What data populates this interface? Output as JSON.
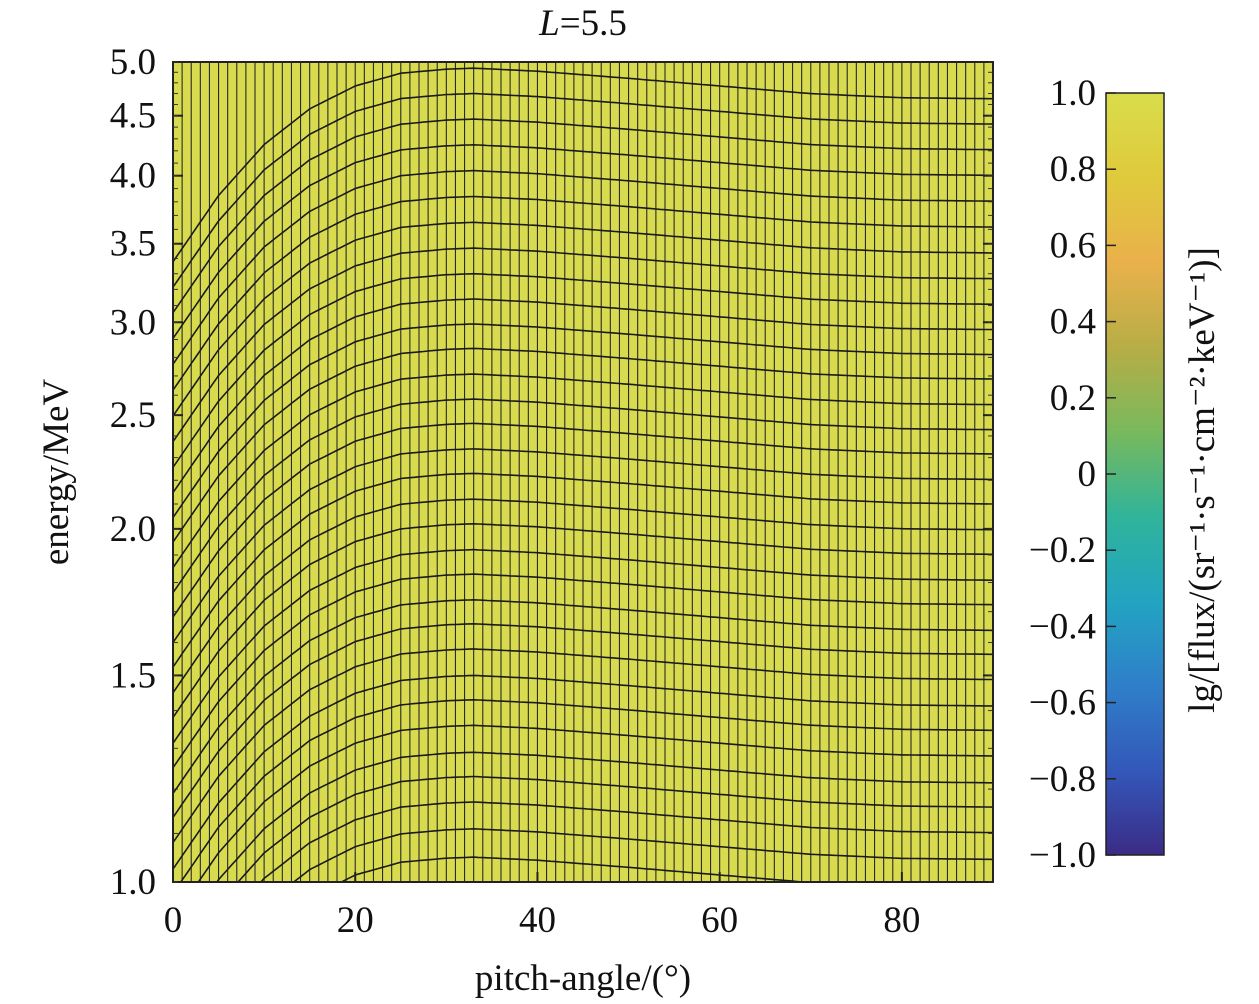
{
  "chart_data": {
    "type": "heatmap",
    "title": "L=5.5",
    "title_italic_part": "L",
    "xlabel": "pitch-angle/(°)",
    "ylabel": "energy/MeV",
    "colorbar_label": "lg/[flux/(sr⁻¹·s⁻¹·cm⁻²·keV⁻¹)]",
    "xlim": [
      0,
      90
    ],
    "ylim": [
      1.0,
      5.0
    ],
    "y_scale": "log",
    "x_ticks": [
      "0",
      "20",
      "40",
      "60",
      "80"
    ],
    "y_ticks": [
      "1.0",
      "1.5",
      "2.0",
      "2.5",
      "3.0",
      "3.5",
      "4.0",
      "4.5",
      "5.0"
    ],
    "colorbar_range": [
      -1.0,
      1.0
    ],
    "colorbar_ticks": [
      "1.0",
      "0.8",
      "0.6",
      "0.4",
      "0.2",
      "0",
      "−0.2",
      "−0.4",
      "−0.6",
      "−0.8",
      "−1.0"
    ],
    "colormap": [
      "#3b2b86",
      "#3358ba",
      "#2f7fc9",
      "#22a4c2",
      "#30b49a",
      "#79b95c",
      "#b8ad46",
      "#eab14b",
      "#dfca3b",
      "#d9dd4b"
    ],
    "fill_color": "#d9db4f",
    "grid": false,
    "field_values": "uniform ≈ 1.0 (saturated) across the whole domain",
    "vertical_grid_line_count": 90,
    "contour_levels_energy_at_peak": [
      1.05,
      1.11,
      1.17,
      1.23,
      1.29,
      1.36,
      1.43,
      1.5,
      1.58,
      1.66,
      1.74,
      1.83,
      1.92,
      2.02,
      2.12,
      2.23,
      2.34,
      2.46,
      2.58,
      2.71,
      2.85,
      2.99,
      3.14,
      3.3,
      3.47,
      3.65,
      3.84,
      4.04,
      4.25,
      4.47,
      4.7,
      4.94
    ],
    "contour_peak_pitch_angle": 33,
    "contour_profile": {
      "pitch_angle": [
        0,
        5,
        10,
        15,
        20,
        25,
        30,
        33,
        40,
        50,
        60,
        70,
        80,
        90
      ],
      "log_energy_offset": [
        -0.38,
        -0.25,
        -0.15,
        -0.08,
        -0.035,
        -0.01,
        -0.002,
        0.0,
        -0.006,
        -0.02,
        -0.035,
        -0.05,
        -0.058,
        -0.06
      ]
    }
  }
}
